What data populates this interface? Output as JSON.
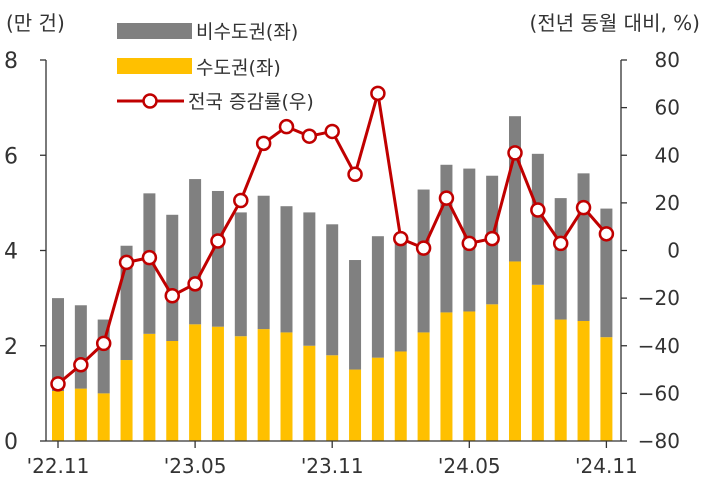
{
  "chart_data": {
    "type": "bar",
    "left_unit_label": "(만 건)",
    "right_unit_label": "(전년 동월 대비, %)",
    "categories": [
      "'22.11",
      "'22.12",
      "'23.01",
      "'23.02",
      "'23.03",
      "'23.04",
      "'23.05",
      "'23.06",
      "'23.07",
      "'23.08",
      "'23.09",
      "'23.10",
      "'23.11",
      "'23.12",
      "'24.01",
      "'24.02",
      "'24.03",
      "'24.04",
      "'24.05",
      "'24.06",
      "'24.07",
      "'24.08",
      "'24.09",
      "'24.10",
      "'24.11"
    ],
    "x_tick_labels": [
      {
        "index": 0,
        "label": "'22.11"
      },
      {
        "index": 6,
        "label": "'23.05"
      },
      {
        "index": 12,
        "label": "'23.11"
      },
      {
        "index": 18,
        "label": "'24.05"
      },
      {
        "index": 24,
        "label": "'24.11"
      }
    ],
    "y_left": {
      "min": 0,
      "max": 8,
      "ticks": [
        0,
        2,
        4,
        6,
        8
      ]
    },
    "y_right": {
      "min": -80,
      "max": 80,
      "ticks": [
        -80,
        -60,
        -40,
        -20,
        0,
        20,
        40,
        60,
        80
      ],
      "tick_labels": [
        "−80",
        "−60",
        "−40",
        "−20",
        "0",
        "20",
        "40",
        "60",
        "80"
      ]
    },
    "series": [
      {
        "name": "비수도권(좌)",
        "kind": "bar-stack-top",
        "color": "#808080",
        "values": [
          1.95,
          1.75,
          1.55,
          2.4,
          2.95,
          2.65,
          3.05,
          2.85,
          2.6,
          2.8,
          2.65,
          2.8,
          2.75,
          2.3,
          2.55,
          2.4,
          3.0,
          3.1,
          3.0,
          2.7,
          3.05,
          2.75,
          2.55,
          3.1,
          2.7
        ]
      },
      {
        "name": "수도권(좌)",
        "kind": "bar-stack-base",
        "color": "#FFC000",
        "values": [
          1.05,
          1.1,
          1.0,
          1.7,
          2.25,
          2.1,
          2.45,
          2.4,
          2.2,
          2.35,
          2.28,
          2.0,
          1.8,
          1.5,
          1.75,
          1.88,
          2.28,
          2.7,
          2.72,
          2.87,
          3.77,
          3.28,
          2.55,
          2.52,
          2.18
        ]
      },
      {
        "name": "전국 증감률(우)",
        "kind": "line",
        "color": "#C00000",
        "values": [
          -56,
          -48,
          -39,
          -5,
          -3,
          -19,
          -14,
          4,
          21,
          45,
          52,
          48,
          50,
          32,
          66,
          5,
          1,
          22,
          3,
          5,
          41,
          17,
          3,
          18,
          7
        ]
      }
    ],
    "title": "",
    "xlabel": "",
    "ylabel_left": "(만 건)",
    "ylabel_right": "(전년 동월 대비, %)",
    "legend": {
      "placement": "top-left"
    }
  }
}
